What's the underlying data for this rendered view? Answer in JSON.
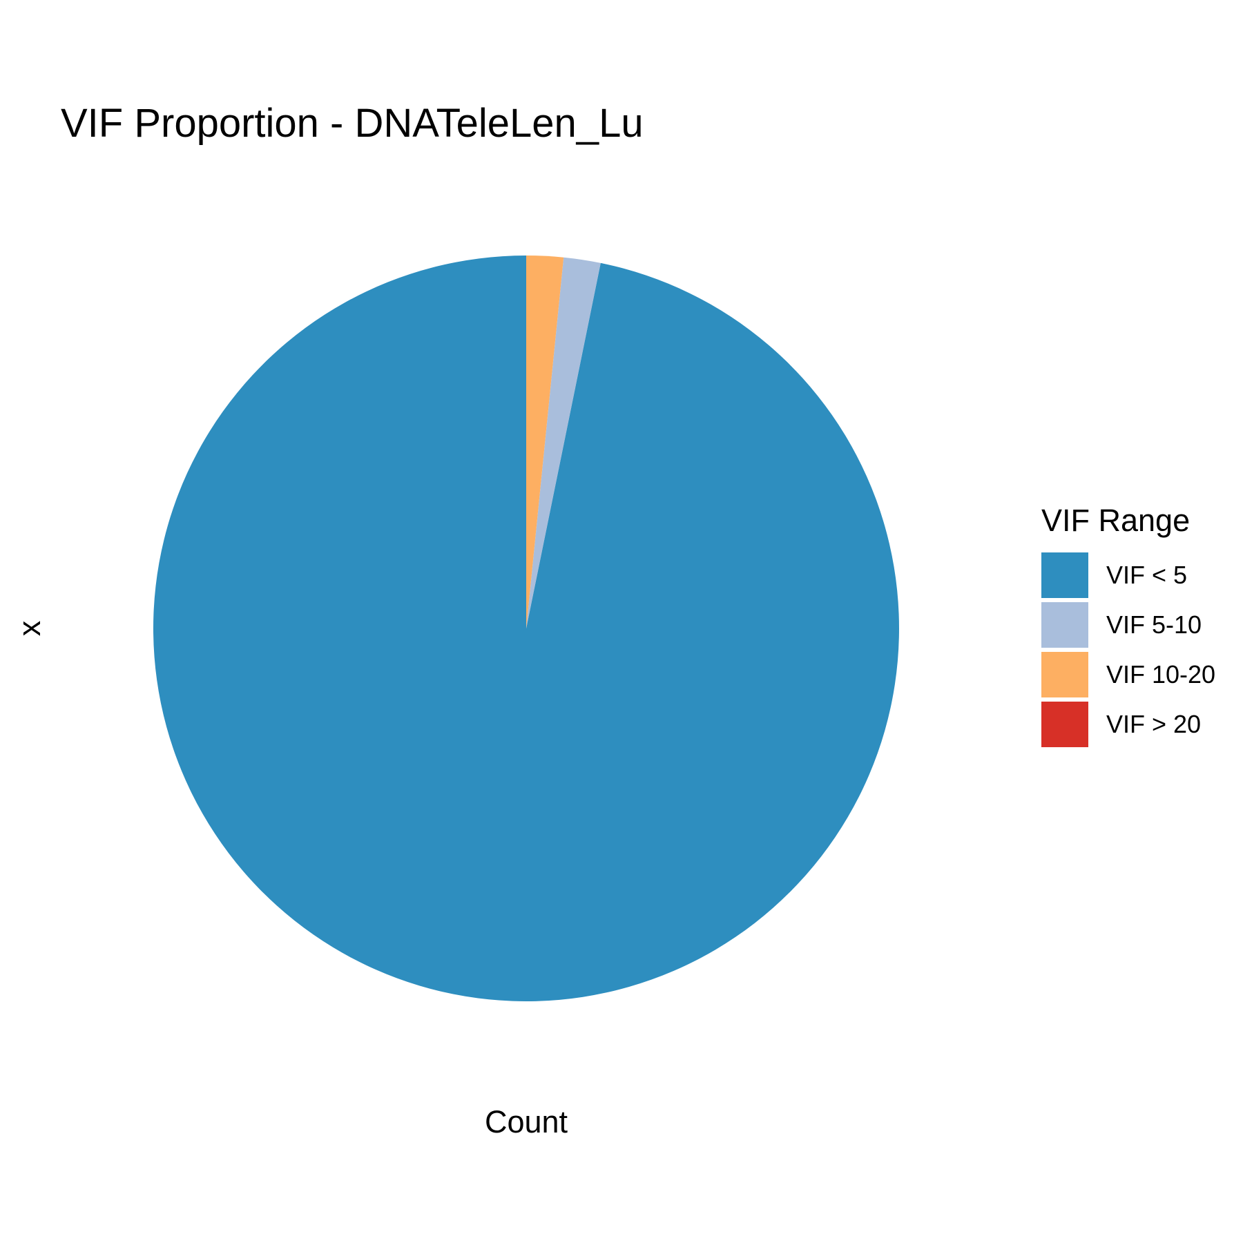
{
  "chart_data": {
    "type": "pie",
    "title": "VIF Proportion - DNATeleLen_Lu",
    "xlabel": "Count",
    "ylabel": "x",
    "legend": {
      "title": "VIF Range",
      "position": "right"
    },
    "categories": [
      "VIF < 5",
      "VIF 5-10",
      "VIF 10-20",
      "VIF > 20"
    ],
    "values": [
      96.8,
      1.6,
      1.6,
      0
    ],
    "colors": [
      "#2E8EBF",
      "#A9BEDC",
      "#FDAF62",
      "#D73027"
    ],
    "direction": "counterclockwise",
    "start_angle_deg": 0,
    "grid": false
  }
}
